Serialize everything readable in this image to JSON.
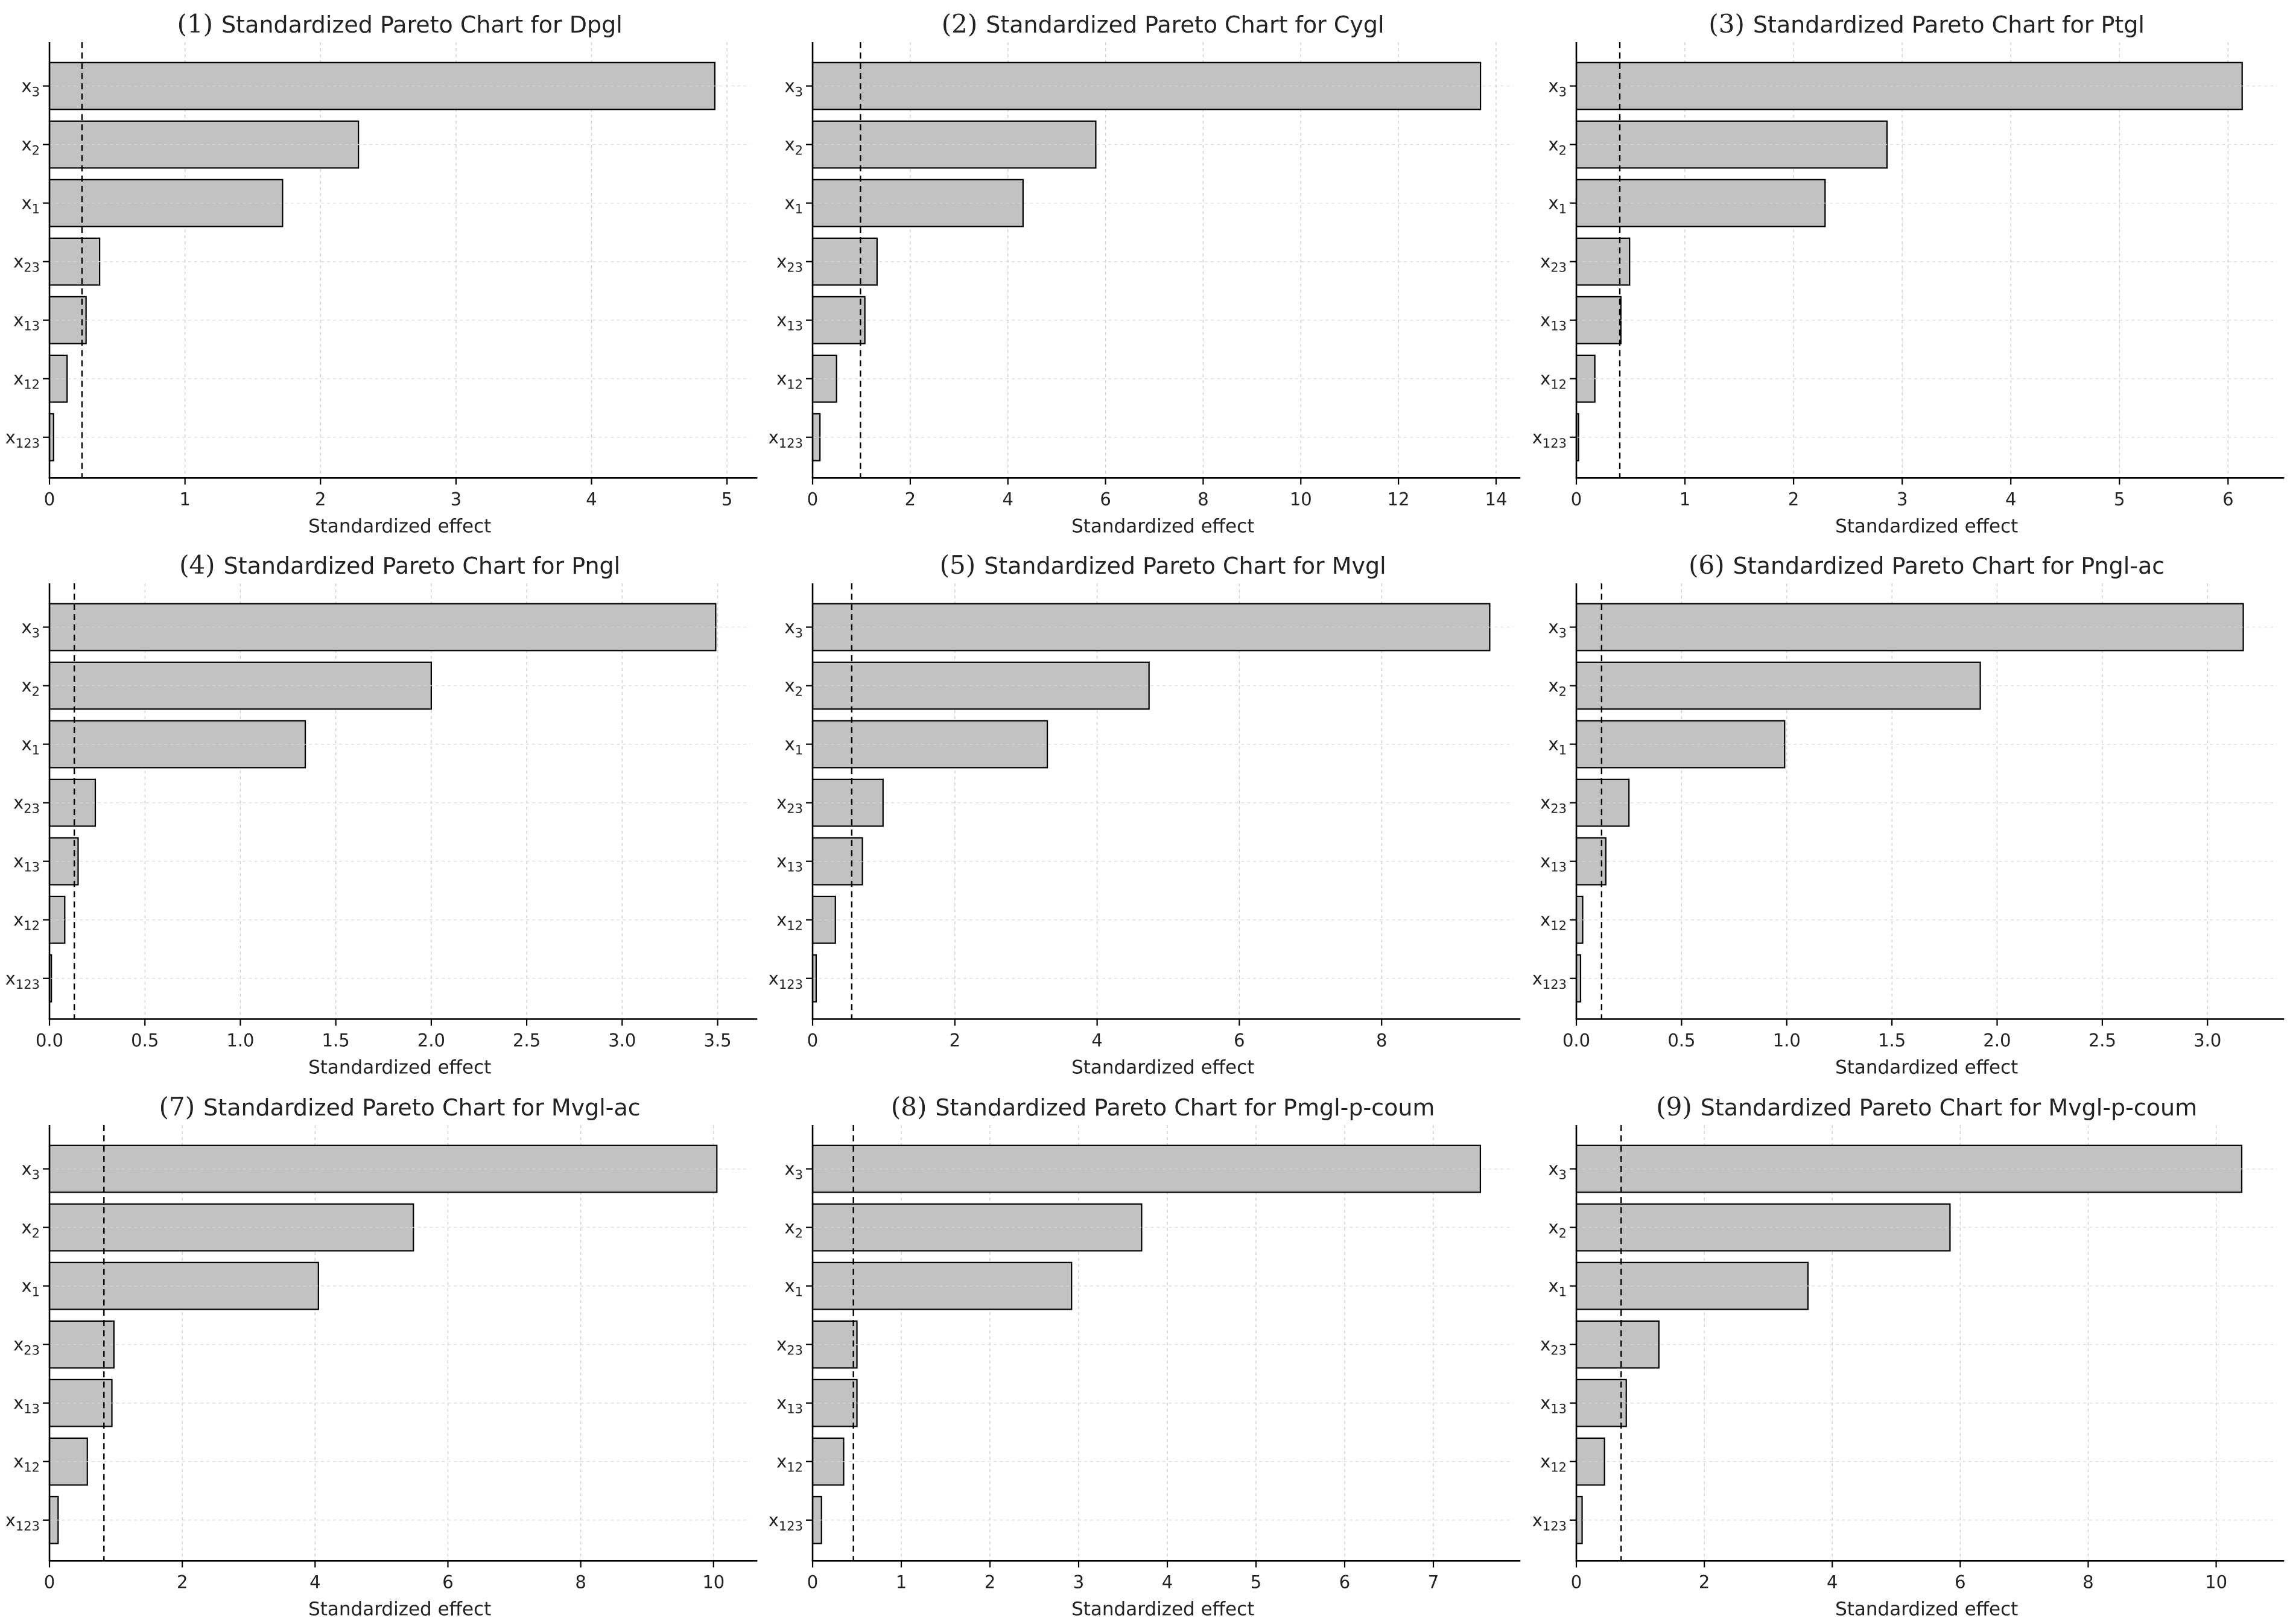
{
  "page": {
    "background": "#ffffff"
  },
  "figure": {
    "xlabel": "Standardized effect",
    "categories": [
      {
        "base": "x",
        "sub": "3"
      },
      {
        "base": "x",
        "sub": "2"
      },
      {
        "base": "x",
        "sub": "1"
      },
      {
        "base": "x",
        "sub": "23"
      },
      {
        "base": "x",
        "sub": "13"
      },
      {
        "base": "x",
        "sub": "12"
      },
      {
        "base": "x",
        "sub": "123"
      }
    ],
    "colors": {
      "bar_fill": "#c2c2c2",
      "bar_edge": "#000000",
      "grid_vertical": "#cfcfcf",
      "grid_horizontal": "#d9d9d9",
      "spine": "#000000",
      "threshold": "#000000",
      "text": "#222222"
    }
  },
  "chart_data": [
    {
      "type": "bar",
      "orientation": "horizontal",
      "number": "(1)",
      "title": "Standardized Pareto Chart for Dpgl",
      "xlabel": "Standardized effect",
      "categories": [
        "x3",
        "x2",
        "x1",
        "x23",
        "x13",
        "x12",
        "x123"
      ],
      "values": [
        4.91,
        2.28,
        1.72,
        0.37,
        0.27,
        0.13,
        0.03
      ],
      "significance_threshold": 0.24,
      "xlim": [
        0,
        5.17
      ],
      "xticks": [
        0,
        1,
        2,
        3,
        4,
        5
      ],
      "xtick_labels": [
        "0",
        "1",
        "2",
        "3",
        "4",
        "5"
      ],
      "grid": true,
      "legend": false
    },
    {
      "type": "bar",
      "orientation": "horizontal",
      "number": "(2)",
      "title": "Standardized Pareto Chart for Cygl",
      "xlabel": "Standardized effect",
      "categories": [
        "x3",
        "x2",
        "x1",
        "x23",
        "x13",
        "x12",
        "x123"
      ],
      "values": [
        13.68,
        5.8,
        4.31,
        1.32,
        1.07,
        0.49,
        0.15
      ],
      "significance_threshold": 0.98,
      "xlim": [
        0,
        14.35
      ],
      "xticks": [
        0,
        2,
        4,
        6,
        8,
        10,
        12,
        14
      ],
      "xtick_labels": [
        "0",
        "2",
        "4",
        "6",
        "8",
        "10",
        "12",
        "14"
      ],
      "grid": true,
      "legend": false
    },
    {
      "type": "bar",
      "orientation": "horizontal",
      "number": "(3)",
      "title": "Standardized Pareto Chart for Ptgl",
      "xlabel": "Standardized effect",
      "categories": [
        "x3",
        "x2",
        "x1",
        "x23",
        "x13",
        "x12",
        "x123"
      ],
      "values": [
        6.13,
        2.86,
        2.29,
        0.49,
        0.41,
        0.17,
        0.02
      ],
      "significance_threshold": 0.4,
      "xlim": [
        0,
        6.45
      ],
      "xticks": [
        0,
        1,
        2,
        3,
        4,
        5,
        6
      ],
      "xtick_labels": [
        "0",
        "1",
        "2",
        "3",
        "4",
        "5",
        "6"
      ],
      "grid": true,
      "legend": false
    },
    {
      "type": "bar",
      "orientation": "horizontal",
      "number": "(4)",
      "title": "Standardized Pareto Chart for Pngl",
      "xlabel": "Standardized effect",
      "categories": [
        "x3",
        "x2",
        "x1",
        "x23",
        "x13",
        "x12",
        "x123"
      ],
      "values": [
        3.49,
        2.0,
        1.34,
        0.24,
        0.15,
        0.08,
        0.01
      ],
      "significance_threshold": 0.13,
      "xlim": [
        0,
        3.67
      ],
      "xticks": [
        0,
        0.5,
        1,
        1.5,
        2,
        2.5,
        3,
        3.5
      ],
      "xtick_labels": [
        "0.0",
        "0.5",
        "1.0",
        "1.5",
        "2.0",
        "2.5",
        "3.0",
        "3.5"
      ],
      "grid": true,
      "legend": false
    },
    {
      "type": "bar",
      "orientation": "horizontal",
      "number": "(5)",
      "title": "Standardized Pareto Chart for Mvgl",
      "xlabel": "Standardized effect",
      "categories": [
        "x3",
        "x2",
        "x1",
        "x23",
        "x13",
        "x12",
        "x123"
      ],
      "values": [
        9.52,
        4.73,
        3.3,
        0.99,
        0.7,
        0.32,
        0.05
      ],
      "significance_threshold": 0.55,
      "xlim": [
        0,
        9.85
      ],
      "xticks": [
        0,
        2,
        4,
        6,
        8
      ],
      "xtick_labels": [
        "0",
        "2",
        "4",
        "6",
        "8"
      ],
      "grid": true,
      "legend": false
    },
    {
      "type": "bar",
      "orientation": "horizontal",
      "number": "(6)",
      "title": "Standardized Pareto Chart for Pngl-ac",
      "xlabel": "Standardized effect",
      "categories": [
        "x3",
        "x2",
        "x1",
        "x23",
        "x13",
        "x12",
        "x123"
      ],
      "values": [
        3.17,
        1.92,
        0.99,
        0.25,
        0.14,
        0.03,
        0.02
      ],
      "significance_threshold": 0.12,
      "xlim": [
        0,
        3.33
      ],
      "xticks": [
        0,
        0.5,
        1,
        1.5,
        2,
        2.5,
        3
      ],
      "xtick_labels": [
        "0.0",
        "0.5",
        "1.0",
        "1.5",
        "2.0",
        "2.5",
        "3.0"
      ],
      "grid": true,
      "legend": false
    },
    {
      "type": "bar",
      "orientation": "horizontal",
      "number": "(7)",
      "title": "Standardized Pareto Chart for Mvgl-ac",
      "xlabel": "Standardized effect",
      "categories": [
        "x3",
        "x2",
        "x1",
        "x23",
        "x13",
        "x12",
        "x123"
      ],
      "values": [
        10.05,
        5.48,
        4.05,
        0.97,
        0.94,
        0.57,
        0.13
      ],
      "significance_threshold": 0.82,
      "xlim": [
        0,
        10.55
      ],
      "xticks": [
        0,
        2,
        4,
        6,
        8,
        10
      ],
      "xtick_labels": [
        "0",
        "2",
        "4",
        "6",
        "8",
        "10"
      ],
      "grid": true,
      "legend": false
    },
    {
      "type": "bar",
      "orientation": "horizontal",
      "number": "(8)",
      "title": "Standardized Pareto Chart for Pmgl-p-coum",
      "xlabel": "Standardized effect",
      "categories": [
        "x3",
        "x2",
        "x1",
        "x23",
        "x13",
        "x12",
        "x123"
      ],
      "values": [
        7.53,
        3.71,
        2.92,
        0.5,
        0.5,
        0.35,
        0.1
      ],
      "significance_threshold": 0.46,
      "xlim": [
        0,
        7.9
      ],
      "xticks": [
        0,
        1,
        2,
        3,
        4,
        5,
        6,
        7
      ],
      "xtick_labels": [
        "0",
        "1",
        "2",
        "3",
        "4",
        "5",
        "6",
        "7"
      ],
      "grid": true,
      "legend": false
    },
    {
      "type": "bar",
      "orientation": "horizontal",
      "number": "(9)",
      "title": "Standardized Pareto Chart for Mvgl-p-coum",
      "xlabel": "Standardized effect",
      "categories": [
        "x3",
        "x2",
        "x1",
        "x23",
        "x13",
        "x12",
        "x123"
      ],
      "values": [
        10.4,
        5.84,
        3.62,
        1.29,
        0.78,
        0.44,
        0.09
      ],
      "significance_threshold": 0.7,
      "xlim": [
        0,
        10.95
      ],
      "xticks": [
        0,
        2,
        4,
        6,
        8,
        10
      ],
      "xtick_labels": [
        "0",
        "2",
        "4",
        "6",
        "8",
        "10"
      ],
      "grid": true,
      "legend": false
    }
  ]
}
